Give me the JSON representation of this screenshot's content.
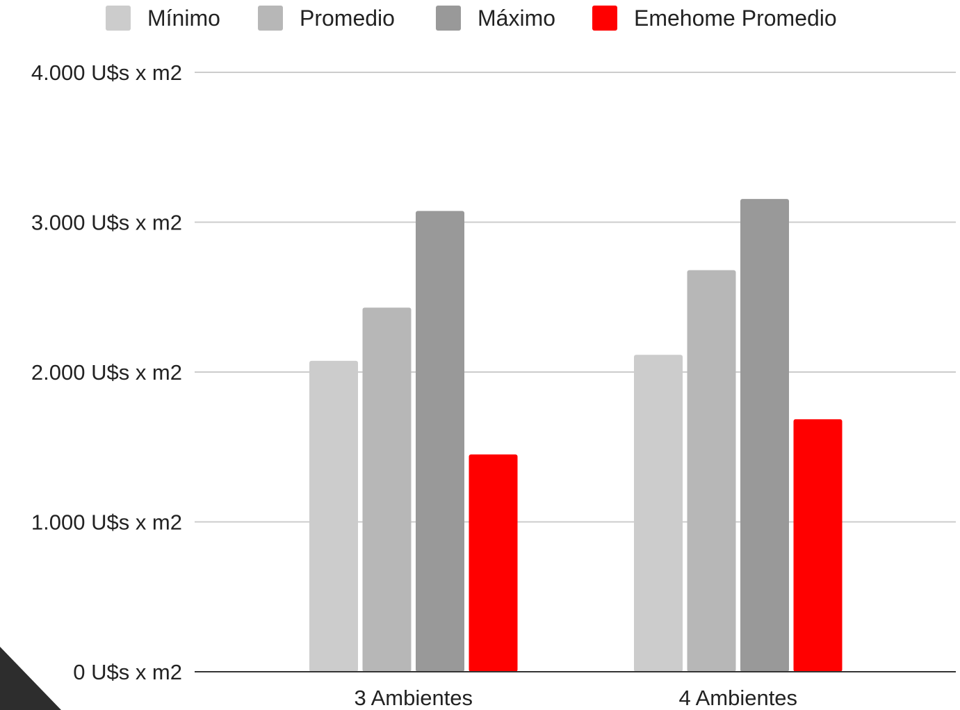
{
  "chart_data": {
    "type": "bar",
    "categories": [
      "3 Ambientes",
      "4 Ambientes"
    ],
    "series": [
      {
        "name": "Mínimo",
        "values": [
          2075,
          2115
        ],
        "color": "#cccccc"
      },
      {
        "name": "Promedio",
        "values": [
          2430,
          2680
        ],
        "color": "#b7b7b7"
      },
      {
        "name": "Máximo",
        "values": [
          3075,
          3155
        ],
        "color": "#999999"
      },
      {
        "name": "Emehome Promedio",
        "values": [
          1450,
          1685
        ],
        "color": "#ff0000"
      }
    ],
    "y_ticks": [
      {
        "value": 0,
        "label": "0 U$s x m2"
      },
      {
        "value": 1000,
        "label": "1.000 U$s x m2"
      },
      {
        "value": 2000,
        "label": "2.000 U$s x m2"
      },
      {
        "value": 3000,
        "label": "3.000 U$s x m2"
      },
      {
        "value": 4000,
        "label": "4.000 U$s x m2"
      }
    ],
    "ylim": [
      0,
      4000
    ],
    "grid": true,
    "legend_position": "top",
    "title": "",
    "xlabel": "",
    "ylabel": ""
  },
  "decoration": {
    "corner_triangle_color": "#2d2d2d"
  }
}
